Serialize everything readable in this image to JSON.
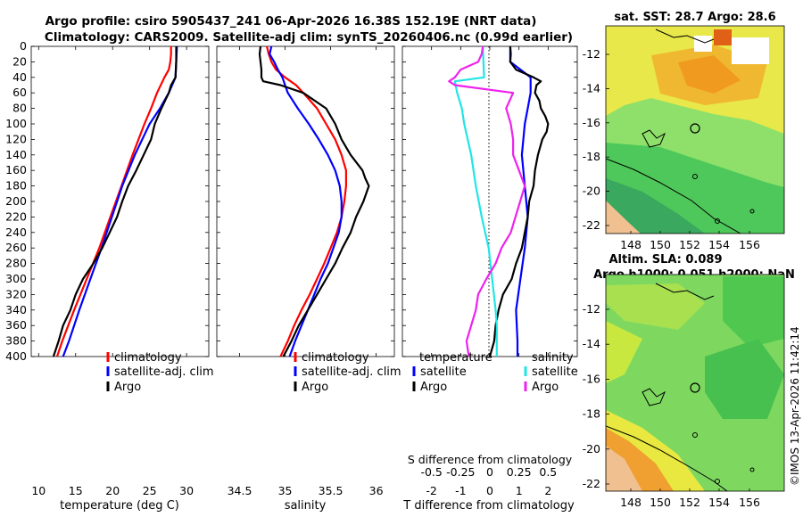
{
  "header": {
    "line1": "Argo profile: csiro 5905437_241 06-Apr-2026 16.38S 152.19E (NRT data)",
    "line2": "Climatology: CARS2009. Satellite-adj clim: synTS_20260406.nc (0.99d earlier)"
  },
  "side_stamp": "©IMOS 13-Apr-2026 11:42:14",
  "colors": {
    "climatology": "#ff0000",
    "satellite": "#0000ff",
    "argo": "#000000",
    "s_satellite": "#22e5e5",
    "s_argo": "#ee22ee"
  },
  "chart_data": [
    {
      "type": "line",
      "id": "temperature",
      "xlabel": "temperature (deg C)",
      "ylabel": "",
      "xlim": [
        9,
        33
      ],
      "ylim": [
        0,
        400
      ],
      "y_reversed": true,
      "xticks": [
        "10",
        "15",
        "20",
        "25",
        "30"
      ],
      "xtick_values": [
        10,
        15,
        20,
        25,
        30
      ],
      "yticks": [
        "0",
        "20",
        "40",
        "60",
        "80",
        "100",
        "120",
        "140",
        "160",
        "180",
        "200",
        "220",
        "240",
        "260",
        "280",
        "300",
        "320",
        "340",
        "360",
        "380",
        "400"
      ],
      "legend": [
        "climatology",
        "satellite-adj. clim",
        "Argo"
      ],
      "series": [
        {
          "name": "climatology",
          "depth": [
            0,
            10,
            20,
            30,
            40,
            60,
            80,
            100,
            140,
            180,
            220,
            260,
            300,
            340,
            380,
            400
          ],
          "values": [
            27.9,
            27.9,
            27.8,
            27.6,
            27.0,
            26.0,
            25.2,
            24.3,
            22.7,
            21.2,
            19.7,
            18.2,
            16.5,
            14.8,
            13.2,
            12.5
          ]
        },
        {
          "name": "satellite-adj. clim",
          "depth": [
            0,
            20,
            40,
            60,
            80,
            100,
            140,
            180,
            220,
            260,
            300,
            340,
            380,
            400
          ],
          "values": [
            28.7,
            28.6,
            28.5,
            27.6,
            26.4,
            25.0,
            23.0,
            21.3,
            19.9,
            18.5,
            17.0,
            15.5,
            14.1,
            13.3
          ]
        },
        {
          "name": "Argo",
          "depth": [
            0,
            20,
            40,
            50,
            60,
            80,
            100,
            120,
            140,
            160,
            180,
            200,
            220,
            240,
            260,
            280,
            300,
            320,
            340,
            360,
            380,
            400
          ],
          "values": [
            28.6,
            28.6,
            28.5,
            27.9,
            27.6,
            26.6,
            25.7,
            25.2,
            24.2,
            23.2,
            22.1,
            21.3,
            20.6,
            19.6,
            18.6,
            17.4,
            16.0,
            15.0,
            14.3,
            13.3,
            12.7,
            12.0
          ]
        }
      ]
    },
    {
      "type": "line",
      "id": "salinity",
      "xlabel": "salinity",
      "ylabel": "",
      "xlim": [
        34.25,
        36.2
      ],
      "ylim": [
        0,
        400
      ],
      "y_reversed": true,
      "xticks": [
        "34.5",
        "35",
        "35.5",
        "36"
      ],
      "xtick_values": [
        34.5,
        35,
        35.5,
        36
      ],
      "legend": [
        "climatology",
        "satellite-adj. clim",
        "Argo"
      ],
      "series": [
        {
          "name": "climatology",
          "depth": [
            0,
            10,
            20,
            30,
            40,
            50,
            60,
            80,
            100,
            120,
            140,
            160,
            180,
            200,
            220,
            240,
            260,
            280,
            300,
            320,
            340,
            360,
            380,
            400
          ],
          "values": [
            34.8,
            34.82,
            34.85,
            34.9,
            35.0,
            35.12,
            35.2,
            35.35,
            35.45,
            35.55,
            35.62,
            35.67,
            35.67,
            35.65,
            35.62,
            35.57,
            35.5,
            35.43,
            35.35,
            35.27,
            35.18,
            35.1,
            35.03,
            34.95
          ]
        },
        {
          "name": "satellite-adj. clim",
          "depth": [
            0,
            10,
            20,
            30,
            40,
            50,
            60,
            80,
            100,
            120,
            140,
            160,
            180,
            200,
            220,
            240,
            260,
            280,
            300,
            320,
            340,
            360,
            380,
            400
          ],
          "values": [
            34.85,
            34.83,
            34.88,
            34.92,
            34.97,
            35.0,
            35.03,
            35.14,
            35.26,
            35.37,
            35.47,
            35.55,
            35.6,
            35.62,
            35.62,
            35.59,
            35.53,
            35.47,
            35.39,
            35.32,
            35.25,
            35.18,
            35.11,
            35.05
          ]
        },
        {
          "name": "Argo",
          "depth": [
            0,
            10,
            20,
            30,
            40,
            45,
            50,
            60,
            80,
            100,
            120,
            140,
            160,
            170,
            180,
            200,
            220,
            240,
            260,
            280,
            300,
            320,
            340,
            360,
            380,
            400
          ],
          "values": [
            34.73,
            34.72,
            34.73,
            34.74,
            34.74,
            34.76,
            34.95,
            35.2,
            35.45,
            35.55,
            35.62,
            35.72,
            35.85,
            35.88,
            35.92,
            35.86,
            35.78,
            35.72,
            35.63,
            35.55,
            35.45,
            35.35,
            35.25,
            35.15,
            35.07,
            34.98
          ]
        }
      ]
    },
    {
      "type": "line",
      "id": "differences",
      "xlabel": "T difference from climatology",
      "top_xlabel": "S difference from climatology",
      "xlim": [
        -3,
        3
      ],
      "ylim": [
        0,
        400
      ],
      "y_reversed": true,
      "xticks": [
        "-2",
        "-1",
        "0",
        "1",
        "2"
      ],
      "xtick_values": [
        -2,
        -1,
        0,
        1,
        2
      ],
      "top_xticks": [
        "-0.5",
        "-0.25",
        "0",
        "0.25",
        "0.5"
      ],
      "legend_temperature": {
        "title": "temperature",
        "items": [
          "satellite",
          "Argo"
        ]
      },
      "legend_salinity": {
        "title": "salinity",
        "items": [
          "satellite",
          "Argo"
        ]
      },
      "series": [
        {
          "name": "temperature satellite",
          "depth": [
            0,
            20,
            40,
            60,
            80,
            100,
            140,
            180,
            220,
            260,
            300,
            340,
            380,
            400
          ],
          "values": [
            0.7,
            0.7,
            1.4,
            1.4,
            1.3,
            1.2,
            1.1,
            1.2,
            1.3,
            1.2,
            1.05,
            0.9,
            0.95,
            0.95
          ]
        },
        {
          "name": "temperature Argo",
          "depth": [
            0,
            10,
            20,
            30,
            40,
            45,
            50,
            60,
            70,
            80,
            90,
            100,
            110,
            120,
            140,
            160,
            180,
            200,
            220,
            240,
            260,
            280,
            300,
            320,
            340,
            360,
            380,
            400
          ],
          "values": [
            0.7,
            0.72,
            0.7,
            0.9,
            1.5,
            1.75,
            1.6,
            1.55,
            1.7,
            1.75,
            1.9,
            2.0,
            1.95,
            1.8,
            1.65,
            1.55,
            1.5,
            1.35,
            1.3,
            1.2,
            1.1,
            0.9,
            0.75,
            0.45,
            0.3,
            0.2,
            0.15,
            0.0
          ]
        },
        {
          "name": "salinity satellite",
          "depth": [
            0,
            40,
            45,
            60,
            80,
            100,
            140,
            180,
            220,
            260,
            300,
            340,
            360,
            400
          ],
          "values": [
            -0.06,
            -0.05,
            -0.3,
            -0.28,
            -0.24,
            -0.22,
            -0.16,
            -0.12,
            -0.07,
            -0.01,
            0.02,
            0.05,
            0.06,
            0.06
          ]
        },
        {
          "name": "salinity Argo",
          "depth": [
            0,
            10,
            20,
            30,
            40,
            45,
            50,
            60,
            80,
            100,
            120,
            140,
            160,
            180,
            200,
            220,
            240,
            260,
            280,
            300,
            320,
            340,
            360,
            380,
            400
          ],
          "values": [
            -0.06,
            -0.07,
            -0.1,
            -0.25,
            -0.3,
            -0.35,
            -0.3,
            0.2,
            0.14,
            0.18,
            0.2,
            0.2,
            0.25,
            0.3,
            0.26,
            0.22,
            0.18,
            0.1,
            0.05,
            -0.03,
            -0.1,
            -0.12,
            -0.16,
            -0.2,
            -0.18
          ]
        }
      ]
    },
    {
      "type": "heatmap",
      "id": "sst_map",
      "title": "sat. SST: 28.7 Argo: 28.6",
      "xticks": [
        "148",
        "150",
        "152",
        "154",
        "156"
      ],
      "yticks": [
        "-12",
        "-14",
        "-16",
        "-18",
        "-20",
        "-22"
      ],
      "marker": {
        "lon": 152.19,
        "lat": -16.38
      }
    },
    {
      "type": "heatmap",
      "id": "sla_map",
      "title": "Altim. SLA: 0.089",
      "subtitle": "Argo h1000: 0.051 h2000: NaN",
      "xticks": [
        "148",
        "150",
        "152",
        "154",
        "156"
      ],
      "yticks": [
        "-12",
        "-14",
        "-16",
        "-18",
        "-20",
        "-22"
      ],
      "marker": {
        "lon": 152.19,
        "lat": -16.38
      }
    }
  ]
}
